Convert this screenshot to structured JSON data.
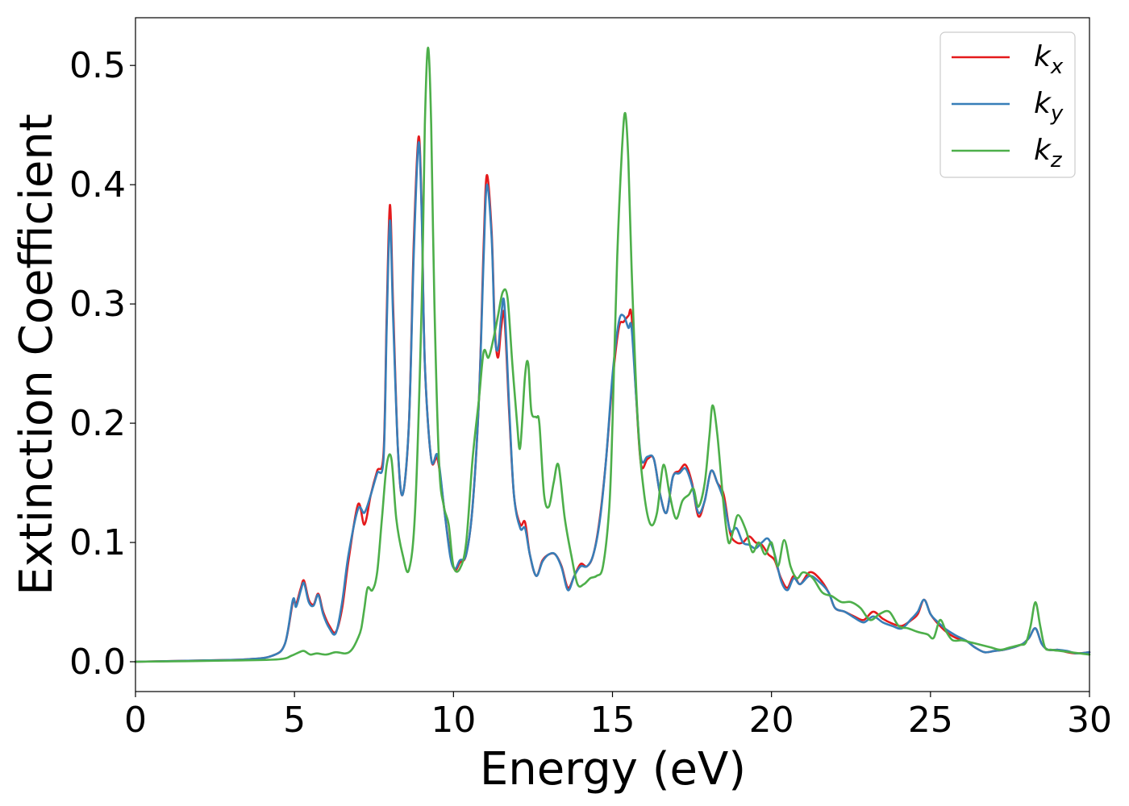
{
  "chart_data": {
    "type": "line",
    "title": "",
    "xlabel": "Energy (eV)",
    "ylabel": "Extinction Coefficient",
    "xlim": [
      0,
      30
    ],
    "ylim": [
      -0.025,
      0.54
    ],
    "xticks": [
      0,
      5,
      10,
      15,
      20,
      25,
      30
    ],
    "xtick_labels": [
      "0",
      "5",
      "10",
      "15",
      "20",
      "25",
      "30"
    ],
    "yticks": [
      0.0,
      0.1,
      0.2,
      0.3,
      0.4,
      0.5
    ],
    "ytick_labels": [
      "0.0",
      "0.1",
      "0.2",
      "0.3",
      "0.4",
      "0.5"
    ],
    "grid": false,
    "legend_position": "top-right",
    "series": [
      {
        "name": "k_x",
        "legend_base": "k",
        "legend_sub": "x",
        "color": "#e41a1c",
        "x": [
          0,
          2,
          3.5,
          4.3,
          4.7,
          4.95,
          5.05,
          5.2,
          5.3,
          5.45,
          5.6,
          5.75,
          5.9,
          6.1,
          6.3,
          6.5,
          6.7,
          7.0,
          7.2,
          7.4,
          7.6,
          7.8,
          7.9,
          8.0,
          8.1,
          8.25,
          8.4,
          8.6,
          8.75,
          8.9,
          9.0,
          9.1,
          9.3,
          9.5,
          9.7,
          9.9,
          10.05,
          10.2,
          10.4,
          10.6,
          10.8,
          10.95,
          11.05,
          11.2,
          11.3,
          11.4,
          11.5,
          11.6,
          11.75,
          11.9,
          12.1,
          12.25,
          12.4,
          12.6,
          12.8,
          13.0,
          13.2,
          13.4,
          13.6,
          13.8,
          14.0,
          14.2,
          14.4,
          14.6,
          14.8,
          15.0,
          15.2,
          15.35,
          15.5,
          15.6,
          15.75,
          15.9,
          16.1,
          16.3,
          16.5,
          16.7,
          16.9,
          17.1,
          17.3,
          17.5,
          17.7,
          17.9,
          18.1,
          18.3,
          18.5,
          18.7,
          18.9,
          19.1,
          19.3,
          19.5,
          19.7,
          19.9,
          20.1,
          20.3,
          20.5,
          20.7,
          20.9,
          21.2,
          21.5,
          21.8,
          22.0,
          22.3,
          22.6,
          22.9,
          23.2,
          23.5,
          23.8,
          24.1,
          24.4,
          24.6,
          24.8,
          25.0,
          25.2,
          25.5,
          25.8,
          26.1,
          26.4,
          26.7,
          27.0,
          27.3,
          27.6,
          27.9,
          28.1,
          28.3,
          28.5,
          28.7,
          29.0,
          29.3,
          29.6,
          30.0
        ],
        "y": [
          0.0,
          0.001,
          0.002,
          0.005,
          0.015,
          0.05,
          0.048,
          0.062,
          0.068,
          0.052,
          0.048,
          0.057,
          0.042,
          0.03,
          0.025,
          0.045,
          0.085,
          0.132,
          0.115,
          0.14,
          0.16,
          0.175,
          0.29,
          0.383,
          0.3,
          0.18,
          0.14,
          0.2,
          0.35,
          0.44,
          0.38,
          0.25,
          0.17,
          0.17,
          0.13,
          0.09,
          0.077,
          0.083,
          0.09,
          0.13,
          0.22,
          0.35,
          0.408,
          0.36,
          0.28,
          0.255,
          0.28,
          0.29,
          0.21,
          0.14,
          0.115,
          0.117,
          0.09,
          0.072,
          0.085,
          0.09,
          0.09,
          0.08,
          0.062,
          0.072,
          0.082,
          0.08,
          0.09,
          0.12,
          0.17,
          0.235,
          0.28,
          0.285,
          0.29,
          0.29,
          0.22,
          0.165,
          0.17,
          0.17,
          0.14,
          0.125,
          0.155,
          0.16,
          0.165,
          0.15,
          0.122,
          0.135,
          0.16,
          0.15,
          0.14,
          0.108,
          0.1,
          0.1,
          0.105,
          0.1,
          0.098,
          0.09,
          0.085,
          0.07,
          0.062,
          0.072,
          0.065,
          0.075,
          0.07,
          0.058,
          0.045,
          0.042,
          0.038,
          0.035,
          0.042,
          0.036,
          0.032,
          0.03,
          0.035,
          0.04,
          0.052,
          0.04,
          0.033,
          0.025,
          0.02,
          0.018,
          0.012,
          0.008,
          0.009,
          0.01,
          0.012,
          0.015,
          0.02,
          0.028,
          0.015,
          0.01,
          0.01,
          0.008,
          0.007,
          0.008
        ]
      },
      {
        "name": "k_y",
        "legend_base": "k",
        "legend_sub": "y",
        "color": "#377eb8",
        "x": [
          0,
          2,
          3.5,
          4.3,
          4.7,
          4.95,
          5.05,
          5.2,
          5.3,
          5.45,
          5.6,
          5.75,
          5.9,
          6.1,
          6.3,
          6.5,
          6.7,
          7.0,
          7.2,
          7.4,
          7.6,
          7.8,
          7.9,
          8.0,
          8.1,
          8.25,
          8.4,
          8.6,
          8.75,
          8.9,
          9.0,
          9.1,
          9.3,
          9.5,
          9.7,
          9.9,
          10.05,
          10.2,
          10.4,
          10.6,
          10.8,
          10.95,
          11.05,
          11.2,
          11.3,
          11.4,
          11.5,
          11.6,
          11.75,
          11.9,
          12.1,
          12.25,
          12.4,
          12.6,
          12.8,
          13.0,
          13.2,
          13.4,
          13.6,
          13.8,
          14.0,
          14.2,
          14.4,
          14.6,
          14.8,
          15.0,
          15.2,
          15.35,
          15.5,
          15.6,
          15.75,
          15.9,
          16.1,
          16.3,
          16.5,
          16.7,
          16.9,
          17.1,
          17.3,
          17.5,
          17.7,
          17.9,
          18.1,
          18.3,
          18.5,
          18.7,
          18.9,
          19.1,
          19.3,
          19.5,
          19.7,
          19.9,
          20.1,
          20.3,
          20.5,
          20.7,
          20.9,
          21.2,
          21.5,
          21.8,
          22.0,
          22.3,
          22.6,
          22.9,
          23.2,
          23.5,
          23.8,
          24.1,
          24.4,
          24.6,
          24.8,
          25.0,
          25.2,
          25.5,
          25.8,
          26.1,
          26.4,
          26.7,
          27.0,
          27.3,
          27.6,
          27.9,
          28.1,
          28.3,
          28.5,
          28.7,
          29.0,
          29.3,
          29.6,
          30.0
        ],
        "y": [
          0.0,
          0.001,
          0.002,
          0.005,
          0.015,
          0.052,
          0.046,
          0.06,
          0.066,
          0.05,
          0.047,
          0.056,
          0.04,
          0.028,
          0.024,
          0.05,
          0.09,
          0.128,
          0.125,
          0.14,
          0.158,
          0.17,
          0.28,
          0.37,
          0.29,
          0.18,
          0.14,
          0.2,
          0.34,
          0.435,
          0.375,
          0.25,
          0.17,
          0.173,
          0.13,
          0.088,
          0.078,
          0.085,
          0.09,
          0.13,
          0.22,
          0.34,
          0.4,
          0.355,
          0.275,
          0.262,
          0.29,
          0.3,
          0.215,
          0.14,
          0.112,
          0.112,
          0.09,
          0.072,
          0.084,
          0.09,
          0.09,
          0.079,
          0.06,
          0.072,
          0.08,
          0.08,
          0.09,
          0.118,
          0.17,
          0.24,
          0.285,
          0.29,
          0.28,
          0.28,
          0.22,
          0.17,
          0.172,
          0.17,
          0.14,
          0.125,
          0.155,
          0.158,
          0.162,
          0.148,
          0.125,
          0.135,
          0.16,
          0.15,
          0.135,
          0.11,
          0.112,
          0.1,
          0.098,
          0.095,
          0.1,
          0.103,
          0.09,
          0.068,
          0.06,
          0.07,
          0.065,
          0.072,
          0.067,
          0.058,
          0.045,
          0.042,
          0.037,
          0.033,
          0.038,
          0.033,
          0.03,
          0.028,
          0.036,
          0.042,
          0.052,
          0.04,
          0.034,
          0.027,
          0.022,
          0.018,
          0.012,
          0.008,
          0.009,
          0.01,
          0.012,
          0.015,
          0.02,
          0.028,
          0.015,
          0.01,
          0.01,
          0.009,
          0.007,
          0.008
        ]
      },
      {
        "name": "k_z",
        "legend_base": "k",
        "legend_sub": "z",
        "color": "#4daf4a",
        "x": [
          0,
          3,
          4.5,
          4.9,
          5.15,
          5.3,
          5.5,
          5.7,
          6.0,
          6.3,
          6.6,
          6.8,
          7.0,
          7.1,
          7.2,
          7.3,
          7.45,
          7.6,
          7.75,
          7.9,
          8.05,
          8.2,
          8.4,
          8.6,
          8.8,
          9.0,
          9.1,
          9.2,
          9.3,
          9.4,
          9.55,
          9.7,
          9.85,
          10.0,
          10.2,
          10.4,
          10.6,
          10.8,
          10.95,
          11.1,
          11.25,
          11.4,
          11.55,
          11.7,
          11.85,
          12.0,
          12.1,
          12.25,
          12.35,
          12.45,
          12.6,
          12.7,
          12.85,
          13.0,
          13.15,
          13.3,
          13.5,
          13.7,
          13.9,
          14.1,
          14.3,
          14.5,
          14.7,
          14.9,
          15.0,
          15.15,
          15.3,
          15.4,
          15.5,
          15.6,
          15.8,
          16.0,
          16.2,
          16.4,
          16.6,
          16.8,
          17.0,
          17.2,
          17.4,
          17.55,
          17.7,
          17.9,
          18.05,
          18.15,
          18.3,
          18.5,
          18.65,
          18.8,
          18.95,
          19.2,
          19.4,
          19.6,
          19.8,
          20.0,
          20.2,
          20.4,
          20.6,
          20.8,
          21.0,
          21.3,
          21.6,
          21.9,
          22.2,
          22.5,
          22.8,
          23.1,
          23.4,
          23.7,
          24.0,
          24.3,
          24.6,
          24.9,
          25.1,
          25.3,
          25.5,
          25.7,
          26.0,
          26.3,
          26.6,
          26.9,
          27.2,
          27.5,
          27.8,
          28.0,
          28.15,
          28.3,
          28.45,
          28.6,
          28.8,
          29.1,
          29.4,
          29.7,
          30.0
        ],
        "y": [
          0.0,
          0.001,
          0.002,
          0.005,
          0.008,
          0.009,
          0.006,
          0.007,
          0.006,
          0.008,
          0.007,
          0.01,
          0.02,
          0.028,
          0.045,
          0.062,
          0.06,
          0.075,
          0.12,
          0.165,
          0.17,
          0.12,
          0.09,
          0.077,
          0.13,
          0.3,
          0.45,
          0.515,
          0.45,
          0.3,
          0.165,
          0.13,
          0.115,
          0.08,
          0.078,
          0.1,
          0.17,
          0.22,
          0.26,
          0.255,
          0.27,
          0.29,
          0.31,
          0.305,
          0.25,
          0.2,
          0.18,
          0.24,
          0.25,
          0.21,
          0.205,
          0.2,
          0.14,
          0.13,
          0.15,
          0.165,
          0.12,
          0.09,
          0.065,
          0.065,
          0.07,
          0.072,
          0.08,
          0.13,
          0.2,
          0.34,
          0.43,
          0.46,
          0.42,
          0.33,
          0.2,
          0.14,
          0.115,
          0.125,
          0.165,
          0.14,
          0.12,
          0.135,
          0.14,
          0.145,
          0.13,
          0.15,
          0.19,
          0.215,
          0.19,
          0.13,
          0.1,
          0.11,
          0.123,
          0.11,
          0.092,
          0.1,
          0.09,
          0.1,
          0.08,
          0.102,
          0.08,
          0.07,
          0.075,
          0.07,
          0.058,
          0.055,
          0.05,
          0.05,
          0.045,
          0.035,
          0.04,
          0.042,
          0.03,
          0.028,
          0.025,
          0.023,
          0.02,
          0.035,
          0.025,
          0.018,
          0.018,
          0.016,
          0.014,
          0.012,
          0.01,
          0.012,
          0.014,
          0.016,
          0.03,
          0.05,
          0.03,
          0.012,
          0.01,
          0.009,
          0.008,
          0.007,
          0.006
        ]
      }
    ]
  }
}
